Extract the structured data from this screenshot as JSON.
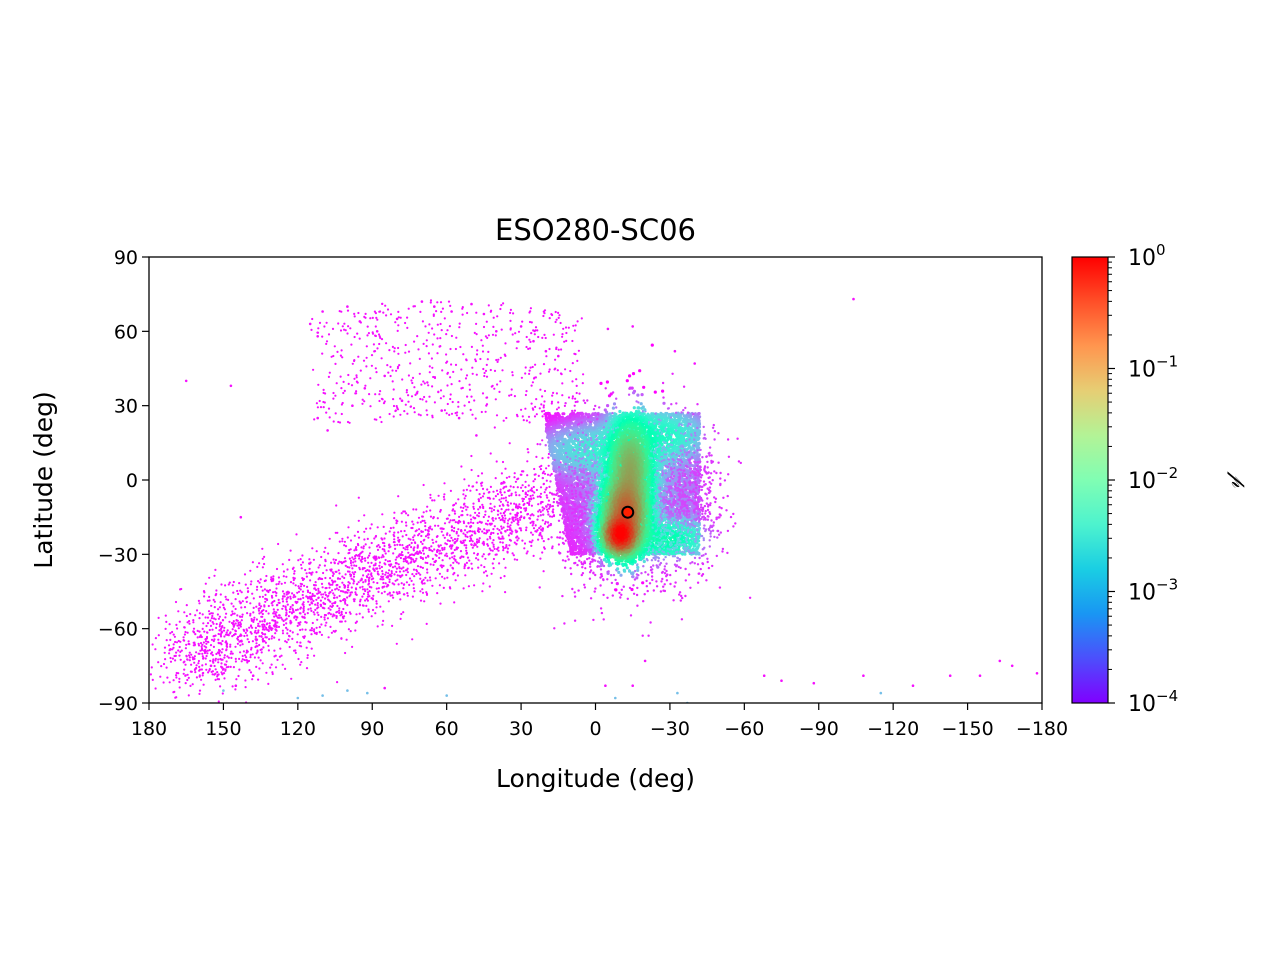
{
  "chart_data": {
    "type": "scatter",
    "title": "ESO280-SC06",
    "xlabel": "Longitude (deg)",
    "ylabel": "Latitude (deg)",
    "xlim": [
      180,
      -180
    ],
    "ylim": [
      -90,
      90
    ],
    "x_inverted": true,
    "grid": false,
    "x_ticks": [
      180,
      150,
      120,
      90,
      60,
      30,
      0,
      -30,
      -60,
      -90,
      -120,
      -150,
      -180
    ],
    "x_tick_labels": [
      "180",
      "150",
      "120",
      "90",
      "60",
      "30",
      "0",
      "−30",
      "−60",
      "−90",
      "−120",
      "−150",
      "−180"
    ],
    "y_ticks": [
      90,
      60,
      30,
      0,
      -30,
      -60,
      -90
    ],
    "y_tick_labels": [
      "90",
      "60",
      "30",
      "0",
      "−30",
      "−60",
      "−90"
    ],
    "colorbar": {
      "label": "𝓅",
      "scale": "log",
      "colormap": "rainbow",
      "range": [
        0.0001,
        1
      ],
      "tick_values": [
        1,
        0.1,
        0.01,
        0.001,
        0.0001
      ],
      "tick_bases": [
        "10",
        "10",
        "10",
        "10",
        "10"
      ],
      "tick_exponents": [
        "0",
        "−1",
        "−2",
        "−3",
        "−4"
      ]
    },
    "marker": {
      "lon": -13,
      "lat": -13,
      "color": "#ff2000",
      "edge": "#000000"
    },
    "density_components": [
      {
        "lon": -10,
        "lat": -22,
        "sigma_lon": 3,
        "sigma_lat": 3.5,
        "peak": 1.0
      },
      {
        "lon": -12,
        "lat": -14,
        "sigma_lon": 4,
        "sigma_lat": 7,
        "peak": 0.35
      },
      {
        "lon": -14,
        "lat": 4,
        "sigma_lon": 4,
        "sigma_lat": 9,
        "peak": 0.12
      },
      {
        "lon": -28,
        "lat": -24,
        "sigma_lon": 8,
        "sigma_lat": 4,
        "peak": 0.012
      },
      {
        "lon": -25,
        "lat": 18,
        "sigma_lon": 9,
        "sigma_lat": 5,
        "peak": 0.006
      },
      {
        "lon": -2,
        "lat": 12,
        "sigma_lon": 12,
        "sigma_lat": 5,
        "peak": 0.003
      },
      {
        "lon": -18,
        "lat": -2,
        "sigma_lon": 16,
        "sigma_lat": 17,
        "peak": 0.0008
      }
    ],
    "scatter_points": [
      [
        165,
        40
      ],
      [
        147,
        38
      ],
      [
        143,
        -15
      ],
      [
        -104,
        73
      ],
      [
        -75,
        -81
      ],
      [
        -88,
        -82
      ],
      [
        -108,
        -79
      ],
      [
        -143,
        -79
      ],
      [
        -155,
        -79
      ],
      [
        -163,
        -73
      ],
      [
        -168,
        -75
      ],
      [
        -178,
        -78
      ],
      [
        -128,
        -83
      ],
      [
        -115,
        -86
      ],
      [
        -33,
        -86
      ],
      [
        -37,
        -90
      ],
      [
        -20,
        -73
      ],
      [
        -68,
        -79
      ],
      [
        -15,
        -83
      ],
      [
        115,
        63
      ],
      [
        110,
        68
      ],
      [
        112,
        58
      ],
      [
        100,
        70
      ],
      [
        95,
        64
      ],
      [
        88,
        60
      ],
      [
        80,
        65
      ],
      [
        70,
        72
      ],
      [
        65,
        70
      ],
      [
        58,
        68
      ],
      [
        50,
        71
      ],
      [
        45,
        67
      ],
      [
        40,
        60
      ],
      [
        30,
        62
      ],
      [
        25,
        56
      ],
      [
        20,
        52
      ],
      [
        15,
        50
      ],
      [
        -5,
        61
      ],
      [
        -15,
        62
      ],
      [
        -32,
        52
      ],
      [
        -40,
        47
      ],
      [
        112,
        25
      ],
      [
        108,
        20
      ],
      [
        98,
        30
      ],
      [
        93,
        37
      ],
      [
        85,
        42
      ],
      [
        78,
        32
      ],
      [
        72,
        35
      ],
      [
        62,
        28
      ],
      [
        55,
        25
      ],
      [
        48,
        18
      ],
      [
        130,
        -40
      ],
      [
        162,
        -72
      ],
      [
        155,
        -75
      ],
      [
        150,
        -85
      ],
      [
        145,
        -83
      ],
      [
        138,
        -79
      ],
      [
        120,
        -88
      ],
      [
        110,
        -87
      ],
      [
        100,
        -85
      ],
      [
        92,
        -86
      ],
      [
        85,
        -84
      ],
      [
        60,
        -87
      ],
      [
        -8,
        -88
      ],
      [
        -4,
        -83
      ]
    ],
    "lower_envelope_extra": [
      [
        172,
        -80
      ],
      [
        168,
        -75
      ],
      [
        160,
        -72
      ],
      [
        152,
        -68
      ],
      [
        145,
        -65
      ],
      [
        138,
        -62
      ],
      [
        130,
        -60
      ],
      [
        122,
        -55
      ],
      [
        115,
        -52
      ],
      [
        108,
        -50
      ],
      [
        100,
        -47
      ],
      [
        92,
        -43
      ],
      [
        85,
        -40
      ],
      [
        78,
        -37
      ],
      [
        70,
        -33
      ],
      [
        62,
        -28
      ],
      [
        55,
        -24
      ],
      [
        48,
        -20
      ],
      [
        42,
        -15
      ],
      [
        35,
        -10
      ],
      [
        28,
        -5
      ],
      [
        22,
        0
      ],
      [
        16,
        5
      ],
      [
        10,
        8
      ]
    ]
  }
}
